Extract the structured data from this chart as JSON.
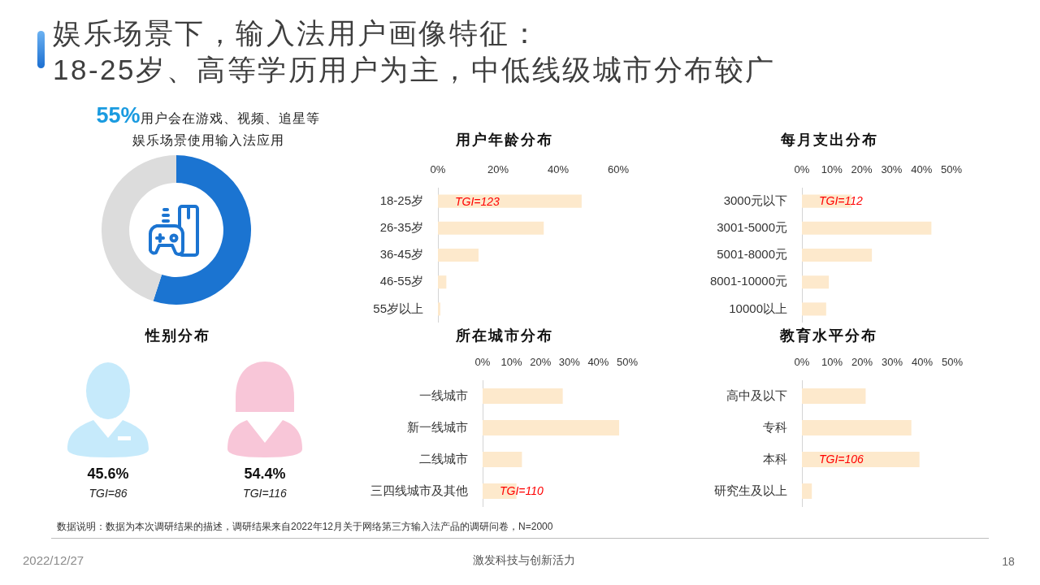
{
  "chart_data": [
    {
      "type": "other",
      "title": "娱乐场景下，输入法用户画像特征：",
      "subtitle": "18-25岁、高等学历用户为主，中低线级城市分布较广"
    },
    {
      "type": "donut",
      "title": "用户会在游戏、视频、追星等娱乐场景使用输入法应用",
      "categories": [
        null,
        null
      ],
      "values": [
        55,
        45
      ],
      "colors": [
        "#1b74d1",
        "#dcdcdc"
      ],
      "annotations": [
        "55%"
      ]
    },
    {
      "type": "bar",
      "orientation": "horizontal",
      "title": "用户年龄分布",
      "categories": [
        "18-25岁",
        "26-35岁",
        "36-45岁",
        "46-55岁",
        "55岁以上"
      ],
      "values": [
        47.8,
        35.2,
        13.5,
        2.8,
        0.8
      ],
      "color": "#fde9cc",
      "xlim": [
        0,
        60
      ],
      "xticks": [
        {
          "value": 0,
          "label": "0%"
        },
        {
          "value": 20,
          "label": "20%"
        },
        {
          "value": 40,
          "label": "40%"
        },
        {
          "value": 60,
          "label": "60%"
        }
      ],
      "annotations": [
        "TGI=123"
      ]
    },
    {
      "type": "bar",
      "orientation": "horizontal",
      "title": "每月支出分布",
      "categories": [
        "3000元以下",
        "3001-5000元",
        "5001-8000元",
        "8001-10000元",
        "10000以上"
      ],
      "values": [
        16.6,
        43.3,
        23.4,
        9,
        8.1
      ],
      "color": "#fde9cc",
      "xlim": [
        0,
        50
      ],
      "xticks": [
        {
          "value": 0,
          "label": "0%"
        },
        {
          "value": 10,
          "label": "10%"
        },
        {
          "value": 20,
          "label": "20%"
        },
        {
          "value": 30,
          "label": "30%"
        },
        {
          "value": 40,
          "label": "40%"
        },
        {
          "value": 50,
          "label": "50%"
        }
      ],
      "annotations": [
        "TGI=112"
      ]
    },
    {
      "type": "other",
      "title": "性别分布",
      "values": [
        45.6,
        54.4
      ],
      "value_labels": [
        "45.6%",
        "54.4%"
      ],
      "annotations": [
        "TGI=86",
        "TGI=116"
      ]
    },
    {
      "type": "bar",
      "orientation": "horizontal",
      "title": "所在城市分布",
      "categories": [
        "一线城市",
        "新一线城市",
        "二线城市",
        "三四线城市及其他"
      ],
      "values": [
        27.7,
        47.2,
        13.6,
        11.7
      ],
      "color": "#fde9cc",
      "xlim": [
        0,
        50
      ],
      "xticks": [
        {
          "value": 0,
          "label": "0%"
        },
        {
          "value": 10,
          "label": "10%"
        },
        {
          "value": 20,
          "label": "20%"
        },
        {
          "value": 30,
          "label": "30%"
        },
        {
          "value": 40,
          "label": "40%"
        },
        {
          "value": 50,
          "label": "50%"
        }
      ],
      "annotations": [
        "TGI=110"
      ]
    },
    {
      "type": "bar",
      "orientation": "horizontal",
      "title": "教育水平分布",
      "categories": [
        "高中及以下",
        "专科",
        "本科",
        "研究生及以上"
      ],
      "values": [
        21.2,
        36.4,
        39.1,
        3.3
      ],
      "color": "#fde9cc",
      "xlim": [
        0,
        50
      ],
      "xticks": [
        {
          "value": 0,
          "label": "0%"
        },
        {
          "value": 10,
          "label": "10%"
        },
        {
          "value": 20,
          "label": "20%"
        },
        {
          "value": 30,
          "label": "30%"
        },
        {
          "value": 40,
          "label": "40%"
        },
        {
          "value": 50,
          "label": "50%"
        }
      ],
      "annotations": [
        "TGI=106"
      ]
    },
    {
      "type": "other",
      "annotations": [
        "数据说明：数据为本次调研结果的描述，调研结果来自2022年12月关于网络第三方输入法产品的调研问卷，N=2000",
        "2022/12/27",
        "激发科技与创新活力",
        "18"
      ]
    }
  ]
}
